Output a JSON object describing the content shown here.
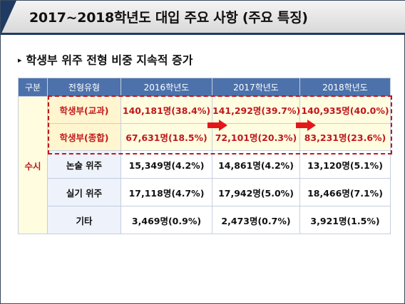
{
  "title": "2017~2018학년도 대입 주요 사항 (주요 특징)",
  "bullet": {
    "marker": "▸",
    "text": "학생부 위주 전형 비중 지속적 증가"
  },
  "table": {
    "headers": [
      "구분",
      "전형유형",
      "2016학년도",
      "2017학년도",
      "2018학년도"
    ],
    "group_label": "수시",
    "rows": [
      {
        "type": "학생부(교과)",
        "y2016": "140,181명(38.4%)",
        "y2017": "141,292명(39.7%)",
        "y2018": "140,935명(40.0%)",
        "highlight": true
      },
      {
        "type": "학생부(종합)",
        "y2016": "67,631명(18.5%)",
        "y2017": "72,101명(20.3%)",
        "y2018": "83,231명(23.6%)",
        "highlight": true
      },
      {
        "type": "논술 위주",
        "y2016": "15,349명(4.2%)",
        "y2017": "14,861명(4.2%)",
        "y2018": "13,120명(5.1%)",
        "highlight": false
      },
      {
        "type": "실기 위주",
        "y2016": "17,118명(4.7%)",
        "y2017": "17,942명(5.0%)",
        "y2018": "18,466명(7.1%)",
        "highlight": false
      },
      {
        "type": "기타",
        "y2016": "3,469명(0.9%)",
        "y2017": "2,473명(0.7%)",
        "y2018": "3,921명(1.5%)",
        "highlight": false
      }
    ]
  },
  "colors": {
    "header_bg": "#4d72ab",
    "highlight_text": "#c0181c",
    "arrow": "#e3171a",
    "title_accent": "#1f3b64"
  }
}
